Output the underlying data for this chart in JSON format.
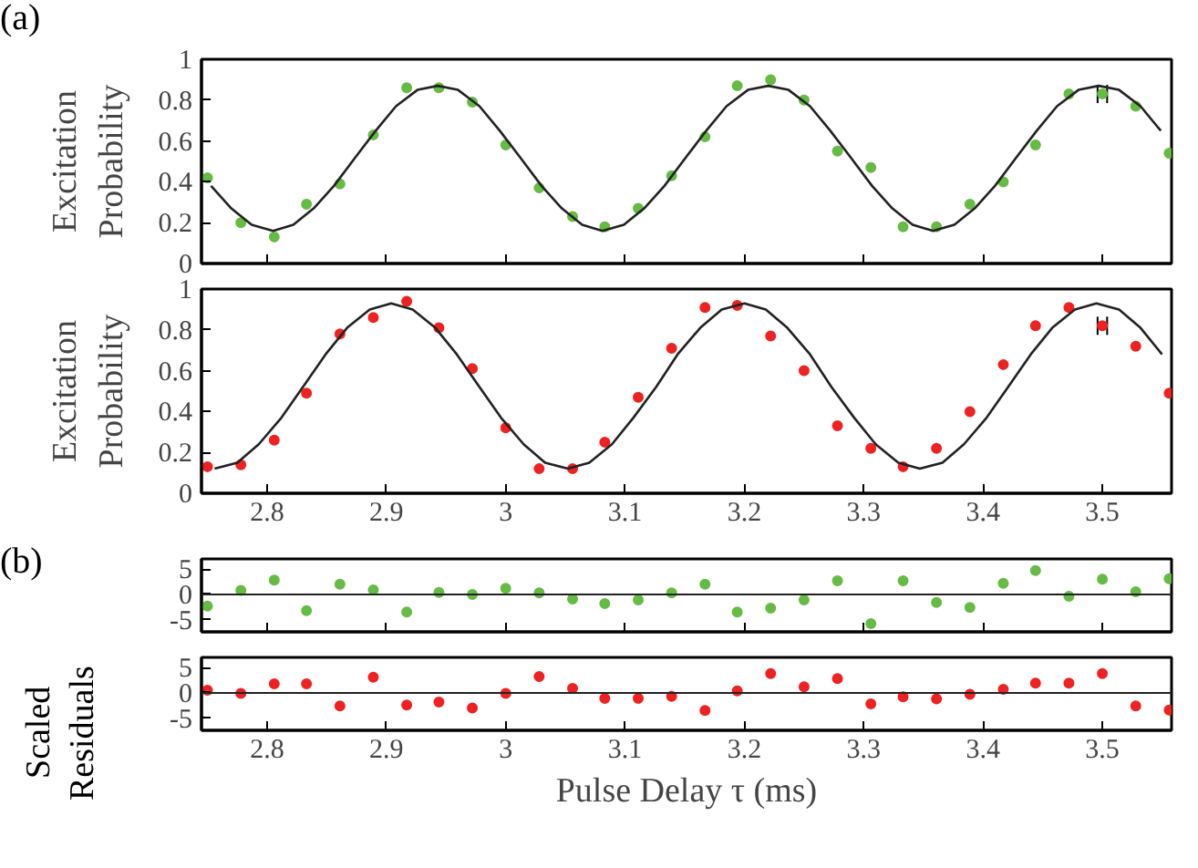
{
  "chart_data": [
    {
      "type": "scatter",
      "ylabel": "Excitation Probability",
      "annotations": [
        "(a)"
      ],
      "tick_labels": "y",
      "grid": false,
      "marker": "circle",
      "xlim": [
        2.745,
        3.558
      ],
      "ylim": [
        0,
        1
      ],
      "xticks": [
        2.8,
        2.9,
        3,
        3.1,
        3.2,
        3.3,
        3.4,
        3.5
      ],
      "yticks": [
        0,
        0.2,
        0.4,
        0.6,
        0.8,
        1
      ],
      "x": [
        2.75,
        2.778,
        2.806,
        2.833,
        2.861,
        2.889,
        2.917,
        2.944,
        2.972,
        3.0,
        3.028,
        3.056,
        3.083,
        3.111,
        3.139,
        3.167,
        3.194,
        3.222,
        3.25,
        3.278,
        3.306,
        3.333,
        3.361,
        3.389,
        3.417,
        3.444,
        3.472,
        3.5,
        3.528,
        3.556
      ],
      "series": [
        {
          "color": "#66bb44",
          "values": [
            0.42,
            0.2,
            0.13,
            0.29,
            0.39,
            0.63,
            0.86,
            0.86,
            0.79,
            0.58,
            0.37,
            0.23,
            0.18,
            0.27,
            0.43,
            0.62,
            0.87,
            0.9,
            0.8,
            0.55,
            0.47,
            0.18,
            0.18,
            0.29,
            0.4,
            0.58,
            0.83,
            0.83,
            0.77,
            0.54
          ],
          "xerrors": [
            null,
            null,
            null,
            null,
            null,
            null,
            null,
            null,
            null,
            null,
            null,
            null,
            null,
            null,
            null,
            null,
            null,
            null,
            null,
            null,
            null,
            null,
            null,
            null,
            null,
            null,
            null,
            0.004,
            null,
            null
          ]
        },
        {
          "type": "line",
          "color": "#222222",
          "marker": "none",
          "x": [
            2.753,
            2.77,
            2.787,
            2.805,
            2.822,
            2.839,
            2.856,
            2.874,
            2.891,
            2.908,
            2.926,
            2.943,
            2.96,
            2.978,
            2.995,
            3.012,
            3.03,
            3.047,
            3.064,
            3.081,
            3.099,
            3.116,
            3.133,
            3.151,
            3.168,
            3.185,
            3.203,
            3.22,
            3.237,
            3.255,
            3.272,
            3.289,
            3.307,
            3.324,
            3.341,
            3.358,
            3.376,
            3.393,
            3.41,
            3.428,
            3.445,
            3.462,
            3.48,
            3.497,
            3.514,
            3.532,
            3.549
          ],
          "values": [
            0.38,
            0.27,
            0.19,
            0.16,
            0.19,
            0.27,
            0.38,
            0.52,
            0.65,
            0.77,
            0.85,
            0.87,
            0.85,
            0.77,
            0.65,
            0.52,
            0.38,
            0.27,
            0.19,
            0.16,
            0.19,
            0.27,
            0.38,
            0.52,
            0.65,
            0.77,
            0.85,
            0.87,
            0.85,
            0.77,
            0.65,
            0.52,
            0.38,
            0.27,
            0.19,
            0.16,
            0.19,
            0.27,
            0.38,
            0.52,
            0.65,
            0.77,
            0.85,
            0.87,
            0.85,
            0.77,
            0.65
          ]
        }
      ]
    },
    {
      "type": "scatter",
      "ylabel": "Excitation Probability",
      "grid": false,
      "marker": "circle",
      "xlim": [
        2.745,
        3.558
      ],
      "ylim": [
        0,
        1
      ],
      "xticks": [
        2.8,
        2.9,
        3,
        3.1,
        3.2,
        3.3,
        3.4,
        3.5
      ],
      "yticks": [
        0,
        0.2,
        0.4,
        0.6,
        0.8,
        1
      ],
      "x": [
        2.75,
        2.778,
        2.806,
        2.833,
        2.861,
        2.889,
        2.917,
        2.944,
        2.972,
        3.0,
        3.028,
        3.056,
        3.083,
        3.111,
        3.139,
        3.167,
        3.194,
        3.222,
        3.25,
        3.278,
        3.306,
        3.333,
        3.361,
        3.389,
        3.417,
        3.444,
        3.472,
        3.5,
        3.528,
        3.556
      ],
      "series": [
        {
          "color": "#ee2222",
          "values": [
            0.13,
            0.14,
            0.26,
            0.49,
            0.78,
            0.86,
            0.94,
            0.81,
            0.61,
            0.32,
            0.12,
            0.12,
            0.25,
            0.47,
            0.71,
            0.91,
            0.92,
            0.77,
            0.6,
            0.33,
            0.22,
            0.13,
            0.22,
            0.4,
            0.63,
            0.82,
            0.91,
            0.82,
            0.72,
            0.49
          ],
          "xerrors": [
            null,
            null,
            null,
            null,
            null,
            null,
            null,
            null,
            null,
            null,
            null,
            null,
            null,
            null,
            null,
            null,
            null,
            null,
            null,
            null,
            null,
            null,
            null,
            null,
            null,
            null,
            null,
            0.004,
            null,
            null
          ]
        },
        {
          "type": "line",
          "color": "#222222",
          "marker": "none",
          "x": [
            2.756,
            2.775,
            2.793,
            2.812,
            2.83,
            2.849,
            2.867,
            2.886,
            2.904,
            2.922,
            2.941,
            2.959,
            2.978,
            2.996,
            3.015,
            3.033,
            3.052,
            3.07,
            3.089,
            3.107,
            3.126,
            3.144,
            3.163,
            3.181,
            3.2,
            3.218,
            3.236,
            3.255,
            3.273,
            3.292,
            3.31,
            3.329,
            3.347,
            3.366,
            3.384,
            3.403,
            3.421,
            3.44,
            3.458,
            3.477,
            3.495,
            3.514,
            3.532,
            3.55
          ],
          "values": [
            0.12,
            0.15,
            0.24,
            0.37,
            0.52,
            0.68,
            0.81,
            0.9,
            0.93,
            0.9,
            0.81,
            0.68,
            0.52,
            0.37,
            0.24,
            0.15,
            0.12,
            0.15,
            0.24,
            0.37,
            0.52,
            0.68,
            0.81,
            0.9,
            0.93,
            0.9,
            0.81,
            0.68,
            0.52,
            0.37,
            0.24,
            0.15,
            0.12,
            0.15,
            0.24,
            0.37,
            0.52,
            0.68,
            0.81,
            0.9,
            0.93,
            0.9,
            0.81,
            0.68
          ]
        }
      ]
    },
    {
      "type": "scatter",
      "ylabel": "Scaled Residuals",
      "annotations": [
        "(b)"
      ],
      "tick_labels": "y",
      "grid": false,
      "marker": "circle",
      "xlim": [
        2.745,
        3.558
      ],
      "ylim": [
        -7.4,
        7
      ],
      "xticks": [
        2.8,
        2.9,
        3,
        3.1,
        3.2,
        3.3,
        3.4,
        3.5
      ],
      "yticks": [
        -5,
        0,
        5
      ],
      "ref_lines": [
        {
          "axis": "y",
          "value": 0,
          "color": "#222222"
        }
      ],
      "x": [
        2.75,
        2.778,
        2.806,
        2.833,
        2.861,
        2.889,
        2.917,
        2.944,
        2.972,
        3.0,
        3.028,
        3.056,
        3.083,
        3.111,
        3.139,
        3.167,
        3.194,
        3.222,
        3.25,
        3.278,
        3.306,
        3.333,
        3.361,
        3.389,
        3.417,
        3.444,
        3.472,
        3.5,
        3.528,
        3.556
      ],
      "series": [
        {
          "color": "#66bb44",
          "values": [
            -2.3,
            0.8,
            2.8,
            -3.2,
            2.0,
            0.9,
            -3.5,
            0.4,
            0,
            1.2,
            0.3,
            -0.9,
            -1.8,
            -1.1,
            0.3,
            2.0,
            -3.5,
            -2.7,
            -1.1,
            2.7,
            -5.8,
            2.7,
            -1.6,
            -2.6,
            2.2,
            4.7,
            -0.4,
            3.0,
            0.5,
            3.1
          ]
        }
      ]
    },
    {
      "type": "scatter",
      "xlabel": "Pulse Delay τ (ms)",
      "grid": false,
      "marker": "circle",
      "xlim": [
        2.745,
        3.558
      ],
      "ylim": [
        -7.4,
        7
      ],
      "xticks": [
        2.8,
        2.9,
        3,
        3.1,
        3.2,
        3.3,
        3.4,
        3.5
      ],
      "yticks": [
        -5,
        0,
        5
      ],
      "ref_lines": [
        {
          "axis": "y",
          "value": 0,
          "color": "#222222"
        }
      ],
      "x": [
        2.75,
        2.778,
        2.806,
        2.833,
        2.861,
        2.889,
        2.917,
        2.944,
        2.972,
        3.0,
        3.028,
        3.056,
        3.083,
        3.111,
        3.139,
        3.167,
        3.194,
        3.222,
        3.25,
        3.278,
        3.306,
        3.333,
        3.361,
        3.389,
        3.417,
        3.444,
        3.472,
        3.5,
        3.528,
        3.556
      ],
      "series": [
        {
          "color": "#ee2222",
          "values": [
            0.5,
            -0.1,
            1.8,
            1.8,
            -2.6,
            3.1,
            -2.4,
            -1.8,
            -3.0,
            -0.1,
            3.2,
            0.9,
            -1.1,
            -1.1,
            -0.7,
            -3.5,
            0.4,
            3.8,
            1.2,
            2.8,
            -2.2,
            -0.8,
            -1.2,
            -0.3,
            0.7,
            1.9,
            1.9,
            3.8,
            -2.6,
            -3.4
          ]
        }
      ]
    }
  ]
}
